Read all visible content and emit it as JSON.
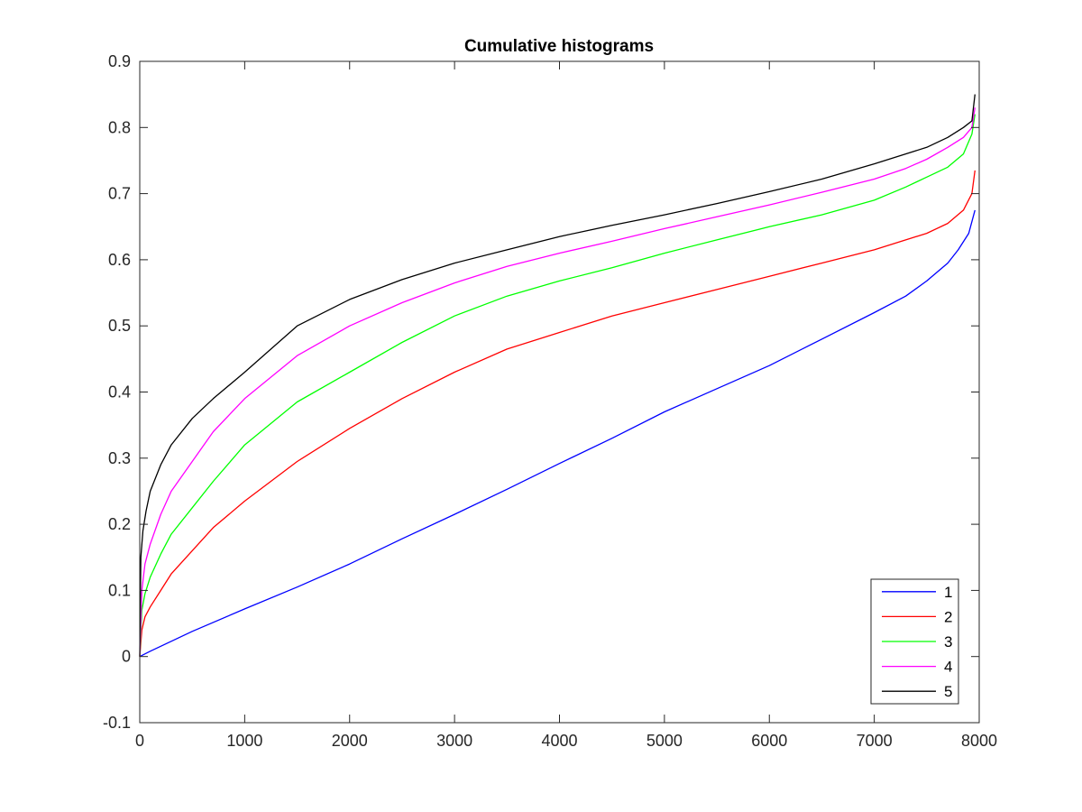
{
  "chart_data": {
    "type": "line",
    "title": "Cumulative histograms",
    "xlabel": "",
    "ylabel": "",
    "xlim": [
      0,
      8000
    ],
    "ylim": [
      -0.1,
      0.9
    ],
    "xticks": [
      0,
      1000,
      2000,
      3000,
      4000,
      5000,
      6000,
      7000,
      8000
    ],
    "xtick_labels": [
      "0",
      "1000",
      "2000",
      "3000",
      "4000",
      "5000",
      "6000",
      "7000",
      "8000"
    ],
    "yticks": [
      -0.1,
      0,
      0.1,
      0.2,
      0.3,
      0.4,
      0.5,
      0.6,
      0.7,
      0.8,
      0.9
    ],
    "ytick_labels": [
      "-0.1",
      "0",
      "0.1",
      "0.2",
      "0.3",
      "0.4",
      "0.5",
      "0.6",
      "0.7",
      "0.8",
      "0.9"
    ],
    "grid": false,
    "legend_position": "bottom-right",
    "series": [
      {
        "name": "1",
        "color": "#0000ff",
        "x": [
          0,
          100,
          500,
          1000,
          1500,
          2000,
          2500,
          3000,
          3500,
          4000,
          4500,
          5000,
          5500,
          6000,
          6500,
          7000,
          7300,
          7500,
          7700,
          7800,
          7900,
          7960
        ],
        "y": [
          0.0,
          0.008,
          0.038,
          0.072,
          0.105,
          0.14,
          0.178,
          0.215,
          0.253,
          0.292,
          0.33,
          0.37,
          0.405,
          0.44,
          0.48,
          0.52,
          0.545,
          0.568,
          0.595,
          0.615,
          0.64,
          0.675
        ]
      },
      {
        "name": "2",
        "color": "#ff0000",
        "x": [
          0,
          20,
          50,
          100,
          200,
          300,
          500,
          700,
          1000,
          1500,
          2000,
          2500,
          3000,
          3500,
          4000,
          4500,
          5000,
          5500,
          6000,
          6500,
          7000,
          7300,
          7500,
          7700,
          7850,
          7930,
          7960
        ],
        "y": [
          0.0,
          0.04,
          0.06,
          0.075,
          0.1,
          0.125,
          0.16,
          0.195,
          0.235,
          0.295,
          0.345,
          0.39,
          0.43,
          0.465,
          0.49,
          0.515,
          0.535,
          0.555,
          0.575,
          0.595,
          0.615,
          0.63,
          0.64,
          0.655,
          0.675,
          0.7,
          0.735
        ]
      },
      {
        "name": "3",
        "color": "#00ff00",
        "x": [
          0,
          20,
          50,
          100,
          200,
          300,
          500,
          700,
          1000,
          1500,
          2000,
          2500,
          3000,
          3500,
          4000,
          4500,
          5000,
          5500,
          6000,
          6500,
          7000,
          7300,
          7500,
          7700,
          7850,
          7930,
          7960
        ],
        "y": [
          0.0,
          0.07,
          0.095,
          0.12,
          0.155,
          0.185,
          0.225,
          0.265,
          0.32,
          0.385,
          0.43,
          0.475,
          0.515,
          0.545,
          0.568,
          0.588,
          0.61,
          0.63,
          0.65,
          0.668,
          0.69,
          0.71,
          0.725,
          0.74,
          0.76,
          0.79,
          0.82
        ]
      },
      {
        "name": "4",
        "color": "#ff00ff",
        "x": [
          0,
          20,
          50,
          100,
          200,
          300,
          500,
          700,
          1000,
          1500,
          2000,
          2500,
          3000,
          3500,
          4000,
          4500,
          5000,
          5500,
          6000,
          6500,
          7000,
          7300,
          7500,
          7700,
          7850,
          7930,
          7960
        ],
        "y": [
          0.0,
          0.1,
          0.14,
          0.17,
          0.215,
          0.25,
          0.295,
          0.34,
          0.39,
          0.455,
          0.5,
          0.535,
          0.565,
          0.59,
          0.61,
          0.628,
          0.647,
          0.665,
          0.683,
          0.702,
          0.722,
          0.738,
          0.752,
          0.77,
          0.785,
          0.8,
          0.83
        ]
      },
      {
        "name": "5",
        "color": "#000000",
        "x": [
          0,
          10,
          30,
          60,
          100,
          200,
          300,
          500,
          700,
          1000,
          1500,
          2000,
          2500,
          3000,
          3500,
          4000,
          4500,
          5000,
          5500,
          6000,
          6500,
          7000,
          7300,
          7500,
          7700,
          7850,
          7930,
          7960
        ],
        "y": [
          0.0,
          0.15,
          0.19,
          0.22,
          0.25,
          0.29,
          0.32,
          0.36,
          0.39,
          0.43,
          0.5,
          0.54,
          0.57,
          0.595,
          0.615,
          0.635,
          0.652,
          0.668,
          0.685,
          0.703,
          0.722,
          0.745,
          0.76,
          0.77,
          0.785,
          0.8,
          0.81,
          0.85
        ]
      }
    ]
  }
}
